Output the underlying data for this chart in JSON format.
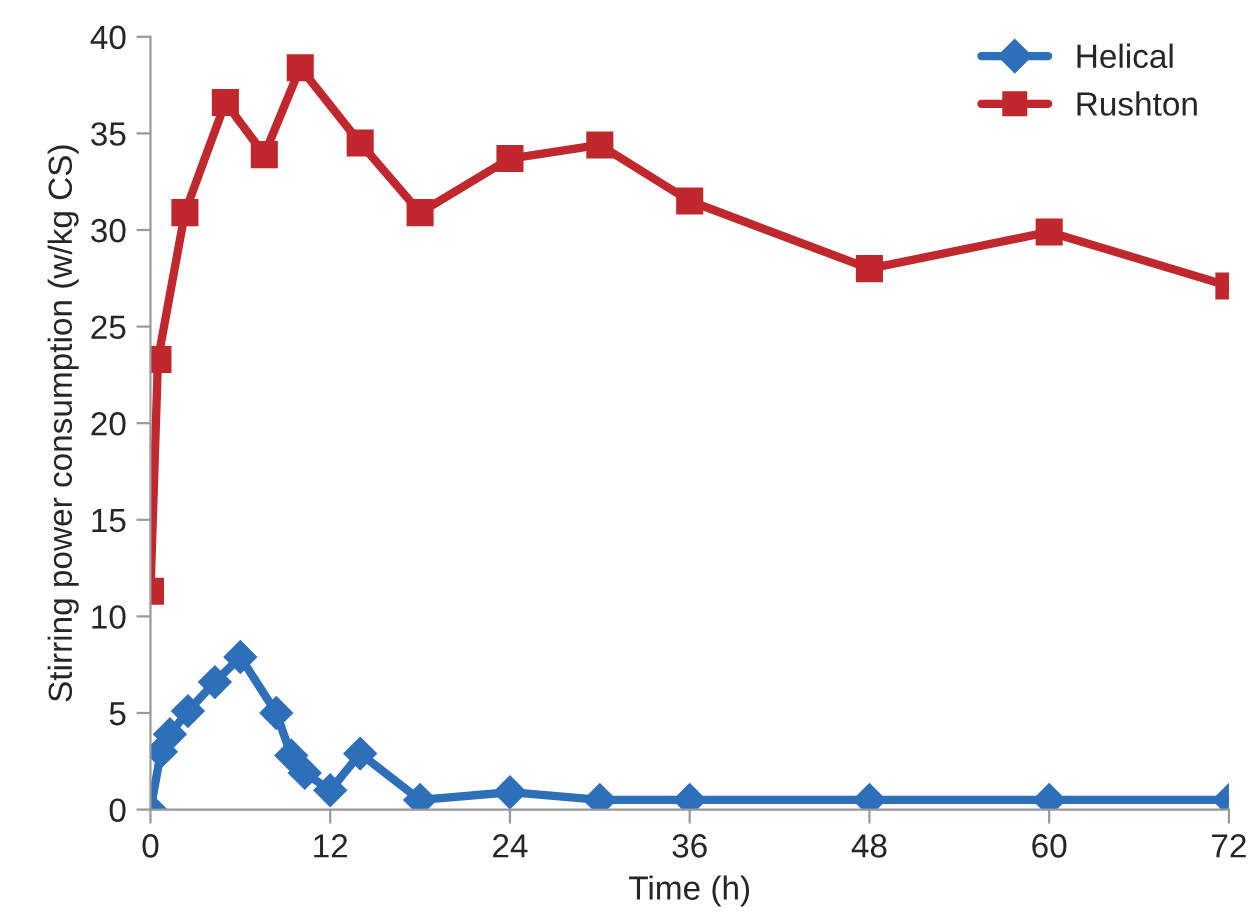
{
  "chart_data": {
    "type": "line",
    "xlabel": "Time (h)",
    "ylabel": "Stirring power consumption (w/kg CS)",
    "xlim": [
      0,
      72
    ],
    "xticks": [
      0,
      12,
      24,
      36,
      48,
      60,
      72
    ],
    "ylim": [
      0,
      40
    ],
    "yticks": [
      0,
      5,
      10,
      15,
      20,
      25,
      30,
      35,
      40
    ],
    "grid": false,
    "legend": "top right",
    "line_style": "solid",
    "series": [
      {
        "name": "Helical",
        "color": "#2e6fba",
        "marker": "diamond",
        "x": [
          0,
          0.7,
          1.3,
          2.5,
          4.3,
          6,
          8.4,
          9.4,
          10.3,
          12,
          14,
          18,
          24,
          30,
          36,
          48,
          60,
          72
        ],
        "values": [
          0,
          3.0,
          3.9,
          5.1,
          6.6,
          7.9,
          5.0,
          2.8,
          1.9,
          1.0,
          2.9,
          0.5,
          0.9,
          0.5,
          0.5,
          0.5,
          0.5,
          0.5
        ]
      },
      {
        "name": "Rushton",
        "color": "#c0282d",
        "marker": "square",
        "x": [
          0,
          0.5,
          2.3,
          5,
          7.6,
          10,
          14,
          18,
          24,
          30,
          36,
          48,
          60,
          72
        ],
        "values": [
          11.3,
          23.3,
          30.9,
          36.6,
          33.9,
          38.4,
          34.5,
          30.9,
          33.7,
          34.4,
          31.5,
          28,
          29.9,
          27.1
        ]
      }
    ]
  }
}
